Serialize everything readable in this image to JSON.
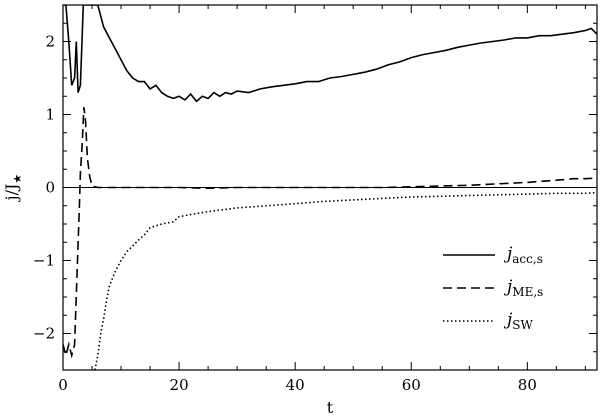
{
  "chart_data": {
    "type": "line",
    "xlabel": "t",
    "ylabel": "j/J",
    "ylabel_sub": "★",
    "xlim": [
      0,
      92
    ],
    "ylim": [
      -2.5,
      2.5
    ],
    "xticks": [
      0,
      20,
      40,
      60,
      80
    ],
    "yticks": [
      -2,
      -1,
      0,
      1,
      2
    ],
    "grid": false,
    "legend_position": "lower-right",
    "zero_line": true,
    "series": [
      {
        "name": "j",
        "name_sub": "acc,s",
        "style": "solid",
        "x": [
          0.0,
          0.5,
          1.0,
          1.5,
          2.0,
          2.3,
          2.6,
          3.0,
          3.5,
          4.0,
          5.0,
          6.0,
          7.0,
          8.0,
          9.0,
          10.0,
          11.0,
          12.0,
          13.0,
          14.0,
          15.0,
          16.0,
          17.0,
          18.0,
          19.0,
          20.0,
          21.0,
          22.0,
          23.0,
          24.0,
          25.0,
          26.0,
          27.0,
          28.0,
          29.0,
          30.0,
          32.0,
          34.0,
          36.0,
          38.0,
          40.0,
          42.0,
          44.0,
          46.0,
          48.0,
          50.0,
          52.0,
          54.0,
          56.0,
          58.0,
          60.0,
          62.0,
          64.0,
          66.0,
          68.0,
          70.0,
          72.0,
          74.0,
          76.0,
          78.0,
          80.0,
          82.0,
          84.0,
          86.0,
          88.0,
          90.0,
          91.0,
          92.0
        ],
        "y": [
          2.5,
          2.5,
          2.0,
          1.4,
          1.5,
          2.0,
          1.3,
          1.4,
          2.5,
          2.5,
          2.5,
          2.5,
          2.2,
          2.05,
          1.9,
          1.75,
          1.6,
          1.5,
          1.45,
          1.45,
          1.35,
          1.4,
          1.3,
          1.25,
          1.22,
          1.25,
          1.2,
          1.28,
          1.18,
          1.25,
          1.22,
          1.3,
          1.25,
          1.3,
          1.28,
          1.32,
          1.3,
          1.35,
          1.38,
          1.4,
          1.42,
          1.45,
          1.45,
          1.5,
          1.52,
          1.55,
          1.58,
          1.62,
          1.68,
          1.72,
          1.78,
          1.82,
          1.85,
          1.88,
          1.92,
          1.95,
          1.98,
          2.0,
          2.02,
          2.05,
          2.05,
          2.08,
          2.08,
          2.1,
          2.12,
          2.15,
          2.18,
          2.1
        ]
      },
      {
        "name": "j",
        "name_sub": "ME,s",
        "style": "dashed",
        "x": [
          0.0,
          0.5,
          1.0,
          1.5,
          2.0,
          2.5,
          2.8,
          3.0,
          3.3,
          3.6,
          3.9,
          4.2,
          4.6,
          5.0,
          6.0,
          8.0,
          10.0,
          15.0,
          20.0,
          25.0,
          30.0,
          35.0,
          40.0,
          45.0,
          50.0,
          55.0,
          60.0,
          65.0,
          70.0,
          75.0,
          80.0,
          85.0,
          88.0,
          90.0,
          92.0
        ],
        "y": [
          -2.15,
          -2.3,
          -2.15,
          -2.3,
          -2.15,
          -1.0,
          -0.3,
          0.2,
          0.6,
          1.1,
          0.9,
          0.4,
          0.15,
          0.02,
          0.0,
          0.0,
          0.0,
          0.0,
          0.0,
          -0.01,
          0.0,
          0.0,
          0.0,
          0.0,
          0.0,
          0.0,
          0.01,
          0.02,
          0.03,
          0.05,
          0.07,
          0.1,
          0.12,
          0.12,
          0.13
        ]
      },
      {
        "name": "j",
        "name_sub": "SW",
        "style": "dotted",
        "x": [
          5.5,
          6.0,
          6.5,
          7.0,
          7.5,
          8.0,
          9.0,
          10.0,
          11.0,
          12.0,
          13.0,
          14.0,
          15.0,
          17.0,
          19.0,
          20.0,
          22.0,
          25.0,
          28.0,
          30.0,
          35.0,
          40.0,
          45.0,
          50.0,
          55.0,
          60.0,
          65.0,
          70.0,
          75.0,
          80.0,
          85.0,
          90.0,
          92.0
        ],
        "y": [
          -2.5,
          -2.3,
          -2.0,
          -1.8,
          -1.55,
          -1.35,
          -1.15,
          -1.0,
          -0.88,
          -0.8,
          -0.72,
          -0.65,
          -0.55,
          -0.5,
          -0.47,
          -0.4,
          -0.37,
          -0.33,
          -0.3,
          -0.28,
          -0.25,
          -0.22,
          -0.19,
          -0.17,
          -0.15,
          -0.13,
          -0.12,
          -0.11,
          -0.1,
          -0.09,
          -0.08,
          -0.08,
          -0.07
        ]
      }
    ]
  }
}
